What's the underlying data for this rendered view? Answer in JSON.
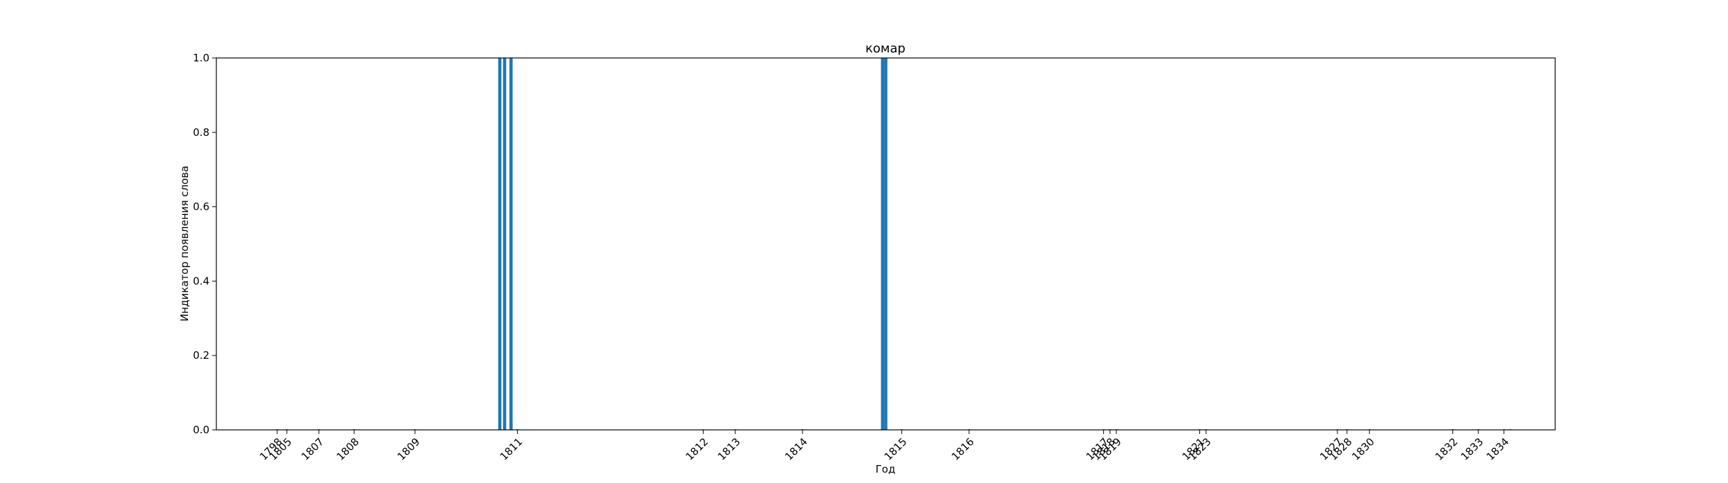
{
  "chart_data": {
    "type": "bar",
    "title": "комар",
    "xlabel": "Год",
    "ylabel": "Индикатор появления слова",
    "ylim": [
      0,
      1
    ],
    "xlim": [
      1795.6,
      1837.4
    ],
    "grid": false,
    "yticks": [
      {
        "value": 0,
        "label": "0.0"
      },
      {
        "value": 0.2,
        "label": "0.2"
      },
      {
        "value": 0.4,
        "label": "0.4"
      },
      {
        "value": 0.6,
        "label": "0.6"
      },
      {
        "value": 0.8,
        "label": "0.8"
      },
      {
        "value": 1,
        "label": "1.0"
      }
    ],
    "xticks": [
      {
        "value": 1797.5,
        "label": "1798"
      },
      {
        "value": 1797.8,
        "label": "1805"
      },
      {
        "value": 1798.8,
        "label": "1807"
      },
      {
        "value": 1799.9,
        "label": "1808"
      },
      {
        "value": 1801.8,
        "label": "1809"
      },
      {
        "value": 1805.0,
        "label": "1811"
      },
      {
        "value": 1810.8,
        "label": "1812"
      },
      {
        "value": 1811.8,
        "label": "1813"
      },
      {
        "value": 1813.9,
        "label": "1814"
      },
      {
        "value": 1817.0,
        "label": "1815"
      },
      {
        "value": 1819.1,
        "label": "1816"
      },
      {
        "value": 1823.3,
        "label": "1817"
      },
      {
        "value": 1823.5,
        "label": "1818"
      },
      {
        "value": 1823.7,
        "label": "1819"
      },
      {
        "value": 1826.3,
        "label": "1821"
      },
      {
        "value": 1826.5,
        "label": "1823"
      },
      {
        "value": 1830.6,
        "label": "1827"
      },
      {
        "value": 1830.9,
        "label": "1828"
      },
      {
        "value": 1831.6,
        "label": "1830"
      },
      {
        "value": 1834.2,
        "label": "1832"
      },
      {
        "value": 1835.0,
        "label": "1833"
      },
      {
        "value": 1835.8,
        "label": "1834"
      }
    ],
    "x": [
      1797.5,
      1797.8,
      1798.8,
      1799.9,
      1801.8,
      1804.45,
      1804.6,
      1804.8,
      1805.0,
      1810.8,
      1811.8,
      1813.9,
      1816.4,
      1816.5,
      1817.0,
      1819.1,
      1823.3,
      1823.5,
      1823.7,
      1826.3,
      1826.5,
      1830.6,
      1830.9,
      1831.6,
      1834.2,
      1835.0,
      1835.8,
      1836.0
    ],
    "values": [
      0,
      0,
      0,
      0,
      0,
      1,
      1,
      1,
      0,
      0,
      0,
      0,
      1,
      1,
      0,
      0,
      0,
      0,
      0,
      0,
      0,
      0,
      0,
      0,
      0,
      0,
      0,
      0
    ],
    "bar_width": 0.1,
    "bar_color": "#1f77b4"
  }
}
